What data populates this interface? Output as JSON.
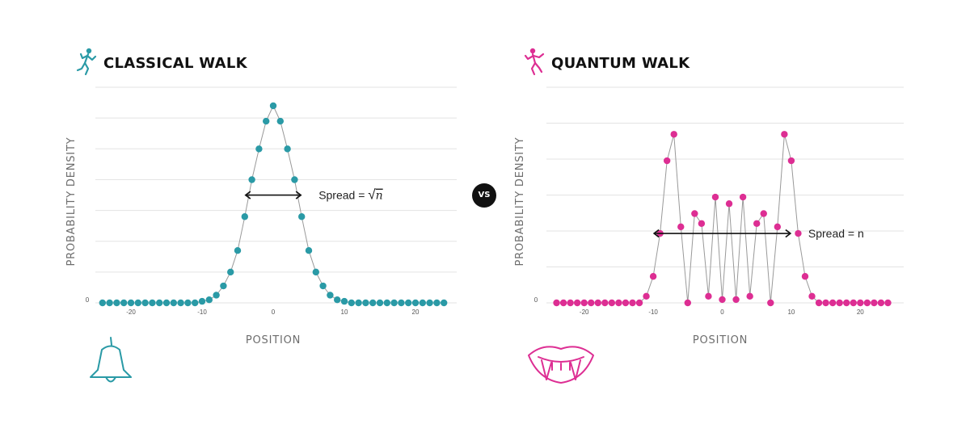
{
  "vs_label": "VS",
  "colors": {
    "classical": "#2A9AA6",
    "quantum": "#DD2E93",
    "line": "#999999",
    "grid": "#e3e3e3",
    "arrow": "#111111"
  },
  "icons": {
    "classical_title": "walking-person-icon",
    "classical_bottom": "bell-icon",
    "quantum_title": "walking-person-icon",
    "quantum_bottom": "vampire-mouth-icon"
  },
  "chart_data": [
    {
      "type": "line",
      "title": "CLASSICAL WALK",
      "xlabel": "POSITION",
      "ylabel": "PROBABILITY DENSITY",
      "xlim": [
        -25,
        25
      ],
      "ylim": [
        0,
        6.4
      ],
      "xticks": [
        -20,
        -10,
        0,
        10,
        20
      ],
      "ytick_label": "0",
      "grid": true,
      "markers": true,
      "spread_label": "Spread = ",
      "spread_symbol": "√",
      "spread_var": "n",
      "spread_arrow_x": [
        -4,
        4
      ],
      "spread_arrow_y": 3.5,
      "series": [
        {
          "x": [
            -24,
            -23,
            -22,
            -21,
            -20,
            -19,
            -18,
            -17,
            -16,
            -15,
            -14,
            -13,
            -12,
            -11,
            -10,
            -9,
            -8,
            -7,
            -6,
            -5,
            -4,
            -3,
            -2,
            -1,
            0,
            1,
            2,
            3,
            4,
            5,
            6,
            7,
            8,
            9,
            10,
            11,
            12,
            13,
            14,
            15,
            16,
            17,
            18,
            19,
            20,
            21,
            22,
            23,
            24
          ],
          "y": [
            0,
            0,
            0,
            0,
            0,
            0,
            0,
            0,
            0,
            0,
            0,
            0,
            0,
            0,
            0.05,
            0.1,
            0.25,
            0.55,
            1.0,
            1.7,
            2.8,
            4.0,
            5.0,
            5.9,
            6.4,
            5.9,
            5.0,
            4.0,
            2.8,
            1.7,
            1.0,
            0.55,
            0.25,
            0.1,
            0.05,
            0,
            0,
            0,
            0,
            0,
            0,
            0,
            0,
            0,
            0,
            0,
            0,
            0,
            0
          ]
        }
      ]
    },
    {
      "type": "line",
      "title": "QUANTUM WALK",
      "xlabel": "POSITION",
      "ylabel": "PROBABILITY DENSITY",
      "xlim": [
        -25,
        25
      ],
      "ylim": [
        0,
        5.4
      ],
      "xticks": [
        -20,
        -10,
        0,
        10,
        20
      ],
      "ytick_label": "0",
      "grid": true,
      "markers": true,
      "spread_label": "Spread = n",
      "spread_arrow_x": [
        -10,
        10
      ],
      "spread_arrow_y": 2.1,
      "series": [
        {
          "x": [
            -24,
            -23,
            -22,
            -21,
            -20,
            -19,
            -18,
            -17,
            -16,
            -15,
            -14,
            -13,
            -12,
            -11,
            -10,
            -9,
            -8,
            -7,
            -6,
            -5,
            -4,
            -3,
            -2,
            -1,
            0,
            1,
            2,
            3,
            4,
            5,
            6,
            7,
            8,
            9,
            10,
            11,
            12,
            13,
            14,
            15,
            16,
            17,
            18,
            19,
            20,
            21,
            22,
            23,
            24
          ],
          "y": [
            0,
            0,
            0,
            0,
            0,
            0,
            0,
            0,
            0,
            0,
            0,
            0,
            0,
            0.2,
            0.8,
            2.1,
            4.3,
            5.1,
            2.3,
            0,
            2.7,
            2.4,
            0.2,
            3.2,
            0.1,
            3.0,
            0.1,
            3.2,
            0.2,
            2.4,
            2.7,
            0,
            2.3,
            5.1,
            4.3,
            2.1,
            0.8,
            0.2,
            0,
            0,
            0,
            0,
            0,
            0,
            0,
            0,
            0,
            0,
            0
          ]
        }
      ]
    }
  ]
}
